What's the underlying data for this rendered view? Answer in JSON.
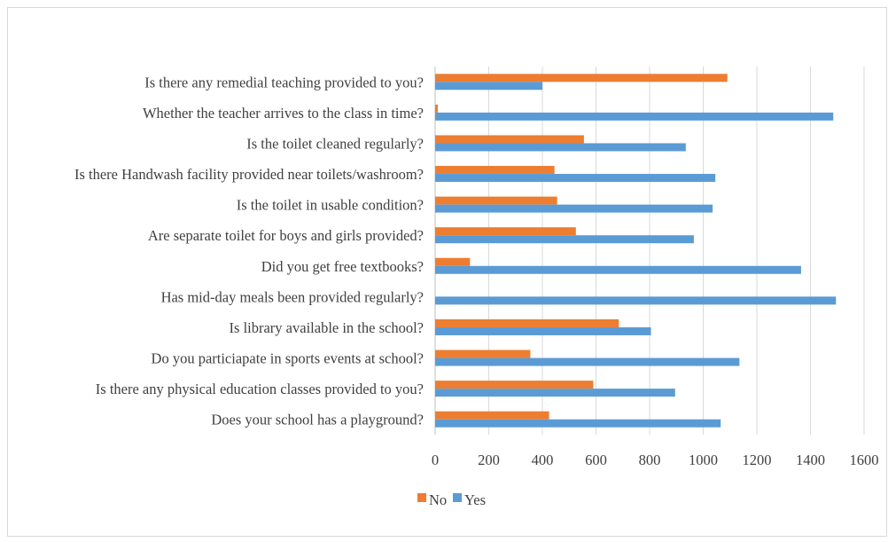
{
  "chart_data": {
    "type": "bar",
    "orientation": "horizontal",
    "categories": [
      "Is there any remedial teaching provided to you?",
      "Whether the teacher arrives to the class in time?",
      "Is the toilet cleaned regularly?",
      "Is there Handwash facility provided near toilets/washroom?",
      "Is the toilet in usable condition?",
      "Are separate toilet for boys and girls provided?",
      "Did you get free textbooks?",
      "Has mid-day meals been provided regularly?",
      "Is library available in the school?",
      "Do you particiapate in sports events at school?",
      "Is there any physical education classes provided to you?",
      "Does your school has a playground?"
    ],
    "series": [
      {
        "name": "No",
        "color": "#ED7D31",
        "values": [
          1090,
          10,
          555,
          445,
          455,
          525,
          130,
          0,
          685,
          355,
          590,
          425
        ]
      },
      {
        "name": "Yes",
        "color": "#5B9BD5",
        "values": [
          400,
          1485,
          935,
          1045,
          1035,
          965,
          1365,
          1495,
          805,
          1135,
          895,
          1065
        ]
      }
    ],
    "xlim": [
      0,
      1600
    ],
    "xticks": [
      0,
      200,
      400,
      600,
      800,
      1000,
      1200,
      1400,
      1600
    ],
    "grid": true,
    "legend": "bottom"
  }
}
